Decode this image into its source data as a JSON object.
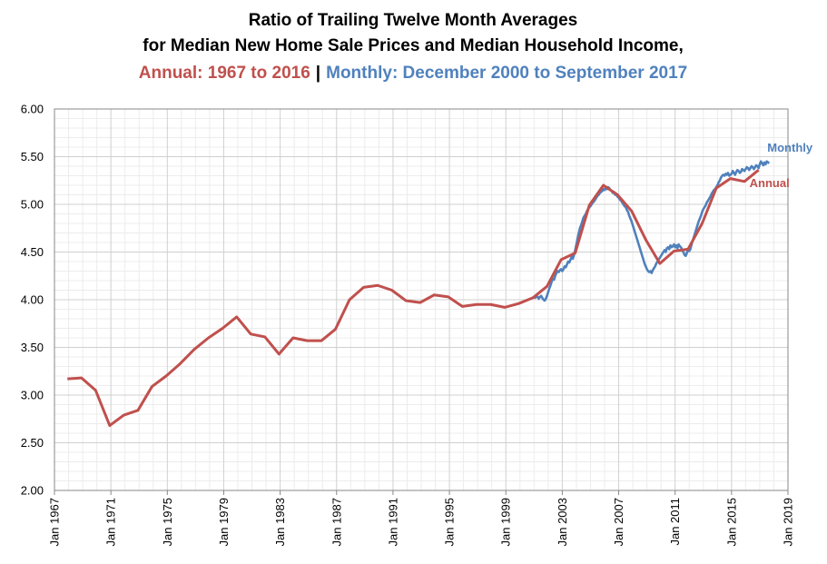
{
  "chart_data": {
    "type": "line",
    "title": "Ratio of Trailing Twelve Month Averages",
    "subtitle": "for Median New Home Sale Prices and Median Household Income,",
    "subtitle_parts": [
      {
        "text": "Annual: 1967 to 2016",
        "color": "#c0504d"
      },
      {
        "text": "|",
        "color": "#000000"
      },
      {
        "text": "Monthly: December 2000 to September 2017",
        "color": "#4f81bd"
      }
    ],
    "xlim": [
      "1967-01",
      "2019-01"
    ],
    "xticks": [
      {
        "value": "1967-01",
        "label": "Jan 1967"
      },
      {
        "value": "1971-01",
        "label": "Jan 1971"
      },
      {
        "value": "1975-01",
        "label": "Jan 1975"
      },
      {
        "value": "1979-01",
        "label": "Jan 1979"
      },
      {
        "value": "1983-01",
        "label": "Jan 1983"
      },
      {
        "value": "1987-01",
        "label": "Jan 1987"
      },
      {
        "value": "1991-01",
        "label": "Jan 1991"
      },
      {
        "value": "1995-01",
        "label": "Jan 1995"
      },
      {
        "value": "1999-01",
        "label": "Jan 1999"
      },
      {
        "value": "2003-01",
        "label": "Jan 2003"
      },
      {
        "value": "2007-01",
        "label": "Jan 2007"
      },
      {
        "value": "2011-01",
        "label": "Jan 2011"
      },
      {
        "value": "2015-01",
        "label": "Jan 2015"
      },
      {
        "value": "2019-01",
        "label": "Jan 2019"
      }
    ],
    "ylim": [
      2,
      6
    ],
    "yticks": [
      {
        "value": 2,
        "label": "2.00"
      },
      {
        "value": 2.5,
        "label": "2.50"
      },
      {
        "value": 3,
        "label": "3.00"
      },
      {
        "value": 3.5,
        "label": "3.50"
      },
      {
        "value": 4,
        "label": "4.00"
      },
      {
        "value": 4.5,
        "label": "4.50"
      },
      {
        "value": 5,
        "label": "5.00"
      },
      {
        "value": 5.5,
        "label": "5.50"
      },
      {
        "value": 6,
        "label": "6.00"
      }
    ],
    "grid": true,
    "minor_grid": true,
    "series": [
      {
        "name": "Monthly",
        "color": "#4f81bd",
        "x": [
          "2000-12",
          "2001-01",
          "2001-02",
          "2001-03",
          "2001-04",
          "2001-05",
          "2001-06",
          "2001-07",
          "2001-08",
          "2001-09",
          "2001-10",
          "2001-11",
          "2001-12",
          "2002-01",
          "2002-02",
          "2002-03",
          "2002-04",
          "2002-05",
          "2002-06",
          "2002-07",
          "2002-08",
          "2002-09",
          "2002-10",
          "2002-11",
          "2002-12",
          "2003-01",
          "2003-02",
          "2003-03",
          "2003-04",
          "2003-05",
          "2003-06",
          "2003-07",
          "2003-08",
          "2003-09",
          "2003-10",
          "2003-11",
          "2003-12",
          "2004-01",
          "2004-02",
          "2004-03",
          "2004-04",
          "2004-05",
          "2004-06",
          "2004-07",
          "2004-08",
          "2004-09",
          "2004-10",
          "2004-11",
          "2004-12",
          "2005-01",
          "2005-02",
          "2005-03",
          "2005-04",
          "2005-05",
          "2005-06",
          "2005-07",
          "2005-08",
          "2005-09",
          "2005-10",
          "2005-11",
          "2005-12",
          "2006-01",
          "2006-02",
          "2006-03",
          "2006-04",
          "2006-05",
          "2006-06",
          "2006-07",
          "2006-08",
          "2006-09",
          "2006-10",
          "2006-11",
          "2006-12",
          "2007-01",
          "2007-02",
          "2007-03",
          "2007-04",
          "2007-05",
          "2007-06",
          "2007-07",
          "2007-08",
          "2007-09",
          "2007-10",
          "2007-11",
          "2007-12",
          "2008-01",
          "2008-02",
          "2008-03",
          "2008-04",
          "2008-05",
          "2008-06",
          "2008-07",
          "2008-08",
          "2008-09",
          "2008-10",
          "2008-11",
          "2008-12",
          "2009-01",
          "2009-02",
          "2009-03",
          "2009-04",
          "2009-05",
          "2009-06",
          "2009-07",
          "2009-08",
          "2009-09",
          "2009-10",
          "2009-11",
          "2009-12",
          "2010-01",
          "2010-02",
          "2010-03",
          "2010-04",
          "2010-05",
          "2010-06",
          "2010-07",
          "2010-08",
          "2010-09",
          "2010-10",
          "2010-11",
          "2010-12",
          "2011-01",
          "2011-02",
          "2011-03",
          "2011-04",
          "2011-05",
          "2011-06",
          "2011-07",
          "2011-08",
          "2011-09",
          "2011-10",
          "2011-11",
          "2011-12",
          "2012-01",
          "2012-02",
          "2012-03",
          "2012-04",
          "2012-05",
          "2012-06",
          "2012-07",
          "2012-08",
          "2012-09",
          "2012-10",
          "2012-11",
          "2012-12",
          "2013-01",
          "2013-02",
          "2013-03",
          "2013-04",
          "2013-05",
          "2013-06",
          "2013-07",
          "2013-08",
          "2013-09",
          "2013-10",
          "2013-11",
          "2013-12",
          "2014-01",
          "2014-02",
          "2014-03",
          "2014-04",
          "2014-05",
          "2014-06",
          "2014-07",
          "2014-08",
          "2014-09",
          "2014-10",
          "2014-11",
          "2014-12",
          "2015-01",
          "2015-02",
          "2015-03",
          "2015-04",
          "2015-05",
          "2015-06",
          "2015-07",
          "2015-08",
          "2015-09",
          "2015-10",
          "2015-11",
          "2015-12",
          "2016-01",
          "2016-02",
          "2016-03",
          "2016-04",
          "2016-05",
          "2016-06",
          "2016-07",
          "2016-08",
          "2016-09",
          "2016-10",
          "2016-11",
          "2016-12",
          "2017-01",
          "2017-02",
          "2017-03",
          "2017-04",
          "2017-05",
          "2017-06",
          "2017-07",
          "2017-08",
          "2017-09"
        ],
        "values": [
          4.02,
          4.03,
          4.02,
          4.04,
          4.03,
          4.01,
          4.03,
          4.04,
          4.02,
          4.0,
          3.99,
          4.01,
          4.04,
          4.08,
          4.12,
          4.15,
          4.19,
          4.22,
          4.21,
          4.25,
          4.28,
          4.3,
          4.29,
          4.31,
          4.32,
          4.3,
          4.32,
          4.35,
          4.34,
          4.37,
          4.4,
          4.39,
          4.42,
          4.45,
          4.43,
          4.47,
          4.52,
          4.58,
          4.64,
          4.7,
          4.75,
          4.78,
          4.82,
          4.86,
          4.88,
          4.9,
          4.93,
          4.95,
          4.97,
          4.98,
          5.0,
          5.02,
          5.03,
          5.05,
          5.07,
          5.09,
          5.1,
          5.12,
          5.13,
          5.14,
          5.16,
          5.15,
          5.17,
          5.16,
          5.18,
          5.17,
          5.15,
          5.14,
          5.12,
          5.13,
          5.1,
          5.11,
          5.08,
          5.07,
          5.05,
          5.04,
          5.02,
          5.0,
          4.98,
          4.97,
          4.94,
          4.92,
          4.88,
          4.85,
          4.82,
          4.78,
          4.74,
          4.7,
          4.66,
          4.62,
          4.58,
          4.54,
          4.5,
          4.46,
          4.42,
          4.38,
          4.35,
          4.32,
          4.3,
          4.29,
          4.3,
          4.28,
          4.31,
          4.33,
          4.35,
          4.38,
          4.4,
          4.42,
          4.44,
          4.46,
          4.48,
          4.5,
          4.52,
          4.5,
          4.54,
          4.55,
          4.53,
          4.57,
          4.55,
          4.56,
          4.58,
          4.55,
          4.57,
          4.54,
          4.58,
          4.56,
          4.55,
          4.52,
          4.5,
          4.47,
          4.46,
          4.49,
          4.52,
          4.51,
          4.53,
          4.58,
          4.62,
          4.66,
          4.7,
          4.74,
          4.78,
          4.82,
          4.85,
          4.88,
          4.92,
          4.95,
          4.97,
          4.99,
          5.02,
          5.04,
          5.06,
          5.08,
          5.11,
          5.13,
          5.15,
          5.16,
          5.18,
          5.2,
          5.23,
          5.25,
          5.28,
          5.3,
          5.31,
          5.3,
          5.32,
          5.31,
          5.33,
          5.3,
          5.31,
          5.32,
          5.35,
          5.33,
          5.31,
          5.34,
          5.36,
          5.35,
          5.33,
          5.34,
          5.37,
          5.36,
          5.35,
          5.37,
          5.39,
          5.38,
          5.36,
          5.38,
          5.4,
          5.39,
          5.37,
          5.39,
          5.41,
          5.4,
          5.38,
          5.42,
          5.45,
          5.43,
          5.41,
          5.44,
          5.42,
          5.45,
          5.44,
          5.43
        ]
      },
      {
        "name": "Annual",
        "color": "#c0504d",
        "x": [
          "1967-12",
          "1968-12",
          "1969-12",
          "1970-12",
          "1971-12",
          "1972-12",
          "1973-12",
          "1974-12",
          "1975-12",
          "1976-12",
          "1977-12",
          "1978-12",
          "1979-12",
          "1980-12",
          "1981-12",
          "1982-12",
          "1983-12",
          "1984-12",
          "1985-12",
          "1986-12",
          "1987-12",
          "1988-12",
          "1989-12",
          "1990-12",
          "1991-12",
          "1992-12",
          "1993-12",
          "1994-12",
          "1995-12",
          "1996-12",
          "1997-12",
          "1998-12",
          "1999-12",
          "2000-12",
          "2001-12",
          "2002-12",
          "2003-12",
          "2004-12",
          "2005-12",
          "2006-12",
          "2007-12",
          "2008-12",
          "2009-12",
          "2010-12",
          "2011-12",
          "2012-12",
          "2013-12",
          "2014-12",
          "2015-12",
          "2016-12"
        ],
        "values": [
          3.17,
          3.18,
          3.05,
          2.68,
          2.79,
          2.84,
          3.09,
          3.2,
          3.33,
          3.48,
          3.6,
          3.7,
          3.82,
          3.64,
          3.61,
          3.43,
          3.6,
          3.57,
          3.57,
          3.69,
          4.0,
          4.13,
          4.15,
          4.1,
          3.99,
          3.97,
          4.05,
          4.03,
          3.93,
          3.95,
          3.95,
          3.92,
          3.96,
          4.02,
          4.14,
          4.42,
          4.49,
          4.99,
          5.2,
          5.1,
          4.93,
          4.63,
          4.38,
          4.51,
          4.53,
          4.8,
          5.17,
          5.27,
          5.24,
          5.36
        ]
      }
    ]
  }
}
